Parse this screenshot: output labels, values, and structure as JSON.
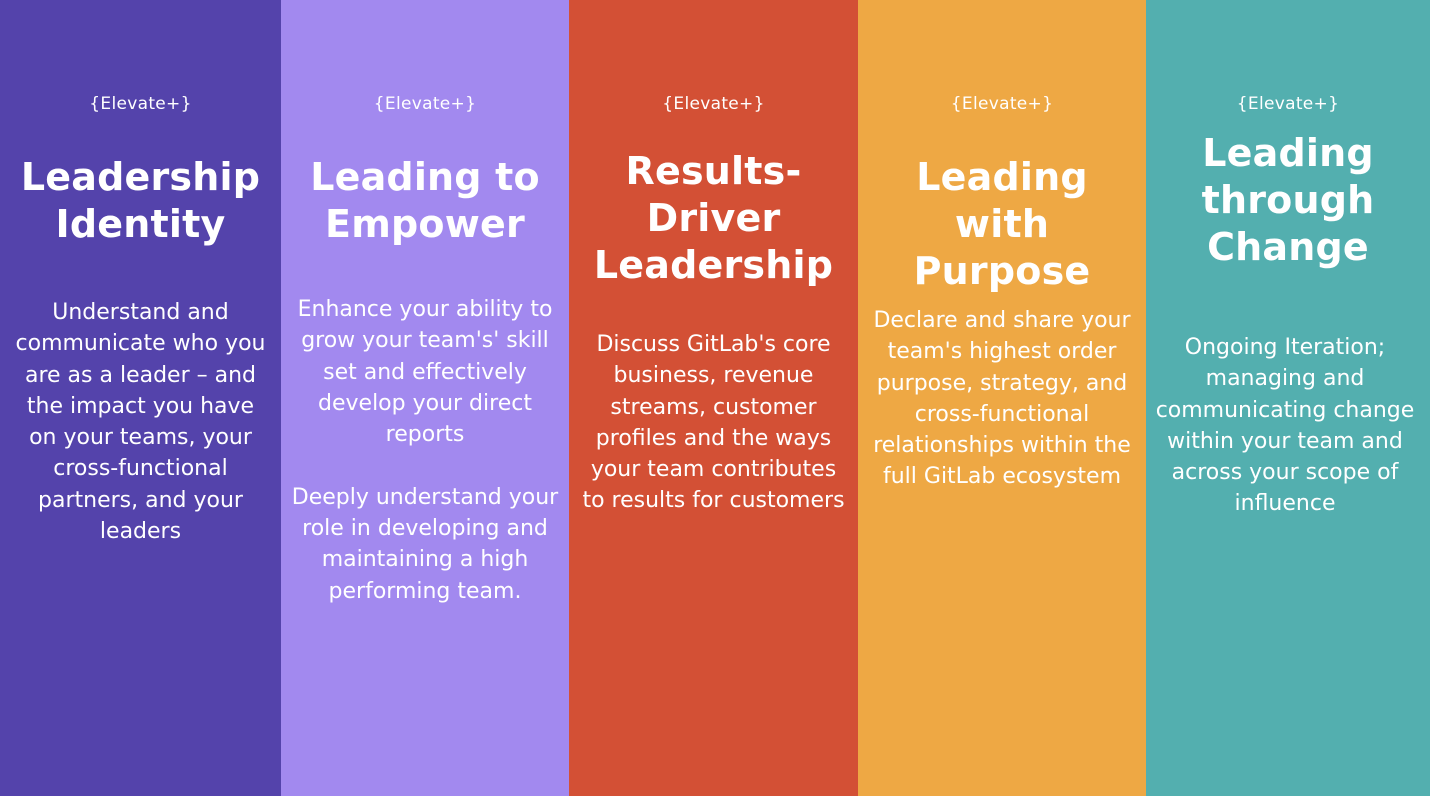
{
  "columns": [
    {
      "tag": "{Elevate+}",
      "title": "Leadership Identity",
      "description": "Understand and communicate who you are as a leader – and the impact you have on your teams, your cross-functional partners, and your leaders",
      "color": "#5443ab"
    },
    {
      "tag": "{Elevate+}",
      "title": "Leading to Empower",
      "description": "Enhance your ability to grow your team's' skill set and  effectively develop your direct reports\n\nDeeply understand your role in developing and maintaining a high performing team.",
      "color": "#a289ef"
    },
    {
      "tag": "{Elevate+}",
      "title": "Results-Driver Leadership",
      "description": "Discuss GitLab's core business, revenue streams, customer profiles and the ways your team contributes to results for customers",
      "color": "#d35035"
    },
    {
      "tag": "{Elevate+}",
      "title": "Leading with Purpose",
      "description": "Declare and share your team's highest order purpose, strategy, and cross-functional relationships within the full GitLab ecosystem",
      "color": "#eea844"
    },
    {
      "tag": "{Elevate+}",
      "title": "Leading through Change",
      "description": "Ongoing Iteration; managing and communicating change within your team and across your scope of influence",
      "color": "#53afaf"
    }
  ]
}
